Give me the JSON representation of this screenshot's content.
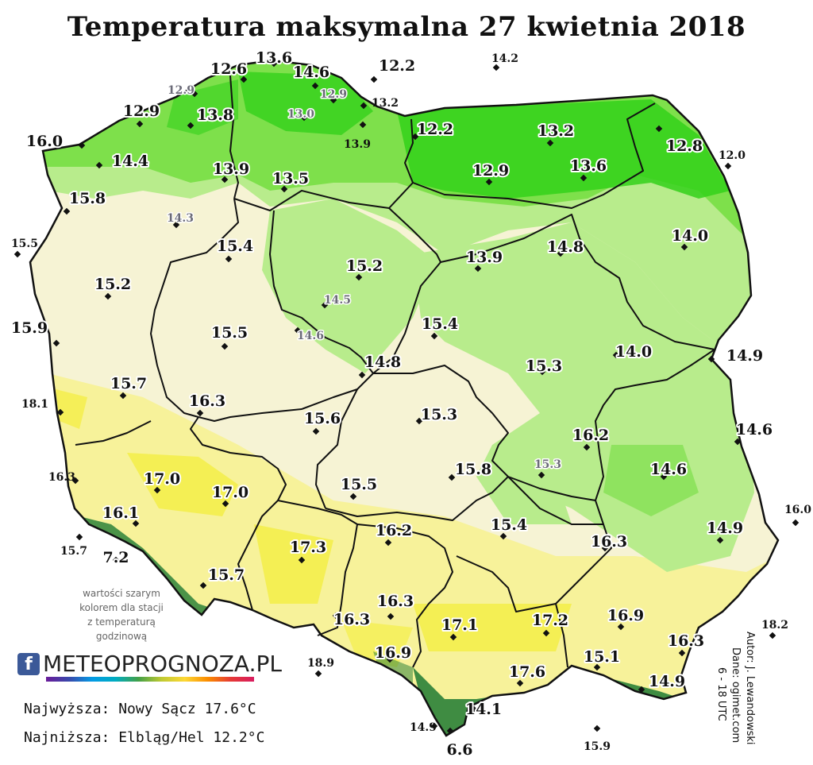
{
  "title": "Temperatura maksymalna 27 kwietnia 2018",
  "note": {
    "line1": "wartości szarym",
    "line2": "kolorem dla stacji",
    "line3": "z temperaturą",
    "line4": "godzinową"
  },
  "logo": {
    "fb": "f",
    "brand": "METEOPROGNOZA.PL"
  },
  "stats": {
    "max": "Najwyższa: Nowy Sącz 17.6°C",
    "min": "Najniższa: Elbląg/Hel 12.2°C"
  },
  "credit": {
    "author": "Autor: J. Lewandowski",
    "source": "Dane: ogimet.com",
    "hours": "6 - 18 UTC"
  },
  "colors": {
    "green_dark": "#33d11a",
    "green": "#7ee04b",
    "green_light": "#b8ec8c",
    "cream": "#f6f3d4",
    "yellow_light": "#f7f29a",
    "yellow": "#f3ee3c",
    "mountain": "#1f7a33",
    "boundary": "#111111",
    "hourly_label": "#6b6b78"
  },
  "stations": [
    {
      "v": "12.6",
      "t": "b"
    },
    {
      "v": "13.6",
      "t": "b"
    },
    {
      "v": "14.6",
      "t": "b"
    },
    {
      "v": "12.2",
      "t": "b"
    },
    {
      "v": "14.2",
      "t": "s"
    },
    {
      "v": "12.9",
      "t": "h"
    },
    {
      "v": "12.9",
      "t": "h"
    },
    {
      "v": "13.0",
      "t": "h"
    },
    {
      "v": "13.2",
      "t": "s"
    },
    {
      "v": "12.9",
      "t": "b"
    },
    {
      "v": "13.8",
      "t": "b"
    },
    {
      "v": "13.9",
      "t": "s"
    },
    {
      "v": "12.2",
      "t": "b"
    },
    {
      "v": "13.2",
      "t": "b"
    },
    {
      "v": "12.8",
      "t": "b"
    },
    {
      "v": "16.0",
      "t": "b"
    },
    {
      "v": "14.4",
      "t": "b"
    },
    {
      "v": "13.9",
      "t": "b"
    },
    {
      "v": "13.5",
      "t": "b"
    },
    {
      "v": "12.9",
      "t": "b"
    },
    {
      "v": "13.6",
      "t": "b"
    },
    {
      "v": "12.0",
      "t": "s"
    },
    {
      "v": "15.8",
      "t": "b"
    },
    {
      "v": "14.3",
      "t": "h"
    },
    {
      "v": "15.4",
      "t": "b"
    },
    {
      "v": "15.2",
      "t": "b"
    },
    {
      "v": "13.9",
      "t": "b"
    },
    {
      "v": "14.8",
      "t": "b"
    },
    {
      "v": "14.0",
      "t": "b"
    },
    {
      "v": "15.5",
      "t": "s"
    },
    {
      "v": "15.2",
      "t": "b"
    },
    {
      "v": "14.5",
      "t": "h"
    },
    {
      "v": "15.9",
      "t": "b"
    },
    {
      "v": "15.5",
      "t": "b"
    },
    {
      "v": "14.6",
      "t": "h"
    },
    {
      "v": "15.4",
      "t": "b"
    },
    {
      "v": "14.8",
      "t": "b"
    },
    {
      "v": "15.3",
      "t": "b"
    },
    {
      "v": "14.0",
      "t": "b"
    },
    {
      "v": "14.9",
      "t": "b"
    },
    {
      "v": "15.7",
      "t": "b"
    },
    {
      "v": "18.1",
      "t": "s"
    },
    {
      "v": "16.3",
      "t": "b"
    },
    {
      "v": "15.6",
      "t": "b"
    },
    {
      "v": "15.3",
      "t": "b"
    },
    {
      "v": "16.2",
      "t": "b"
    },
    {
      "v": "14.6",
      "t": "b"
    },
    {
      "v": "15.3",
      "t": "h"
    },
    {
      "v": "14.6",
      "t": "b"
    },
    {
      "v": "16.3",
      "t": "s"
    },
    {
      "v": "17.0",
      "t": "b"
    },
    {
      "v": "17.0",
      "t": "b"
    },
    {
      "v": "15.5",
      "t": "b"
    },
    {
      "v": "15.8",
      "t": "b"
    },
    {
      "v": "16.0",
      "t": "s"
    },
    {
      "v": "16.1",
      "t": "b"
    },
    {
      "v": "16.2",
      "t": "b"
    },
    {
      "v": "15.4",
      "t": "b"
    },
    {
      "v": "16.3",
      "t": "b"
    },
    {
      "v": "14.9",
      "t": "b"
    },
    {
      "v": "15.7",
      "t": "s"
    },
    {
      "v": "7.2",
      "t": "b"
    },
    {
      "v": "17.3",
      "t": "b"
    },
    {
      "v": "15.7",
      "t": "b"
    },
    {
      "v": "16.3",
      "t": "b"
    },
    {
      "v": "16.3",
      "t": "b"
    },
    {
      "v": "17.1",
      "t": "b"
    },
    {
      "v": "17.2",
      "t": "b"
    },
    {
      "v": "16.9",
      "t": "b"
    },
    {
      "v": "18.2",
      "t": "s"
    },
    {
      "v": "16.3",
      "t": "b"
    },
    {
      "v": "18.9",
      "t": "s"
    },
    {
      "v": "16.9",
      "t": "b"
    },
    {
      "v": "15.1",
      "t": "b"
    },
    {
      "v": "17.6",
      "t": "b"
    },
    {
      "v": "14.9",
      "t": "b"
    },
    {
      "v": "14.1",
      "t": "b"
    },
    {
      "v": "14.9",
      "t": "s"
    },
    {
      "v": "6.6",
      "t": "b"
    },
    {
      "v": "15.9",
      "t": "s"
    }
  ]
}
